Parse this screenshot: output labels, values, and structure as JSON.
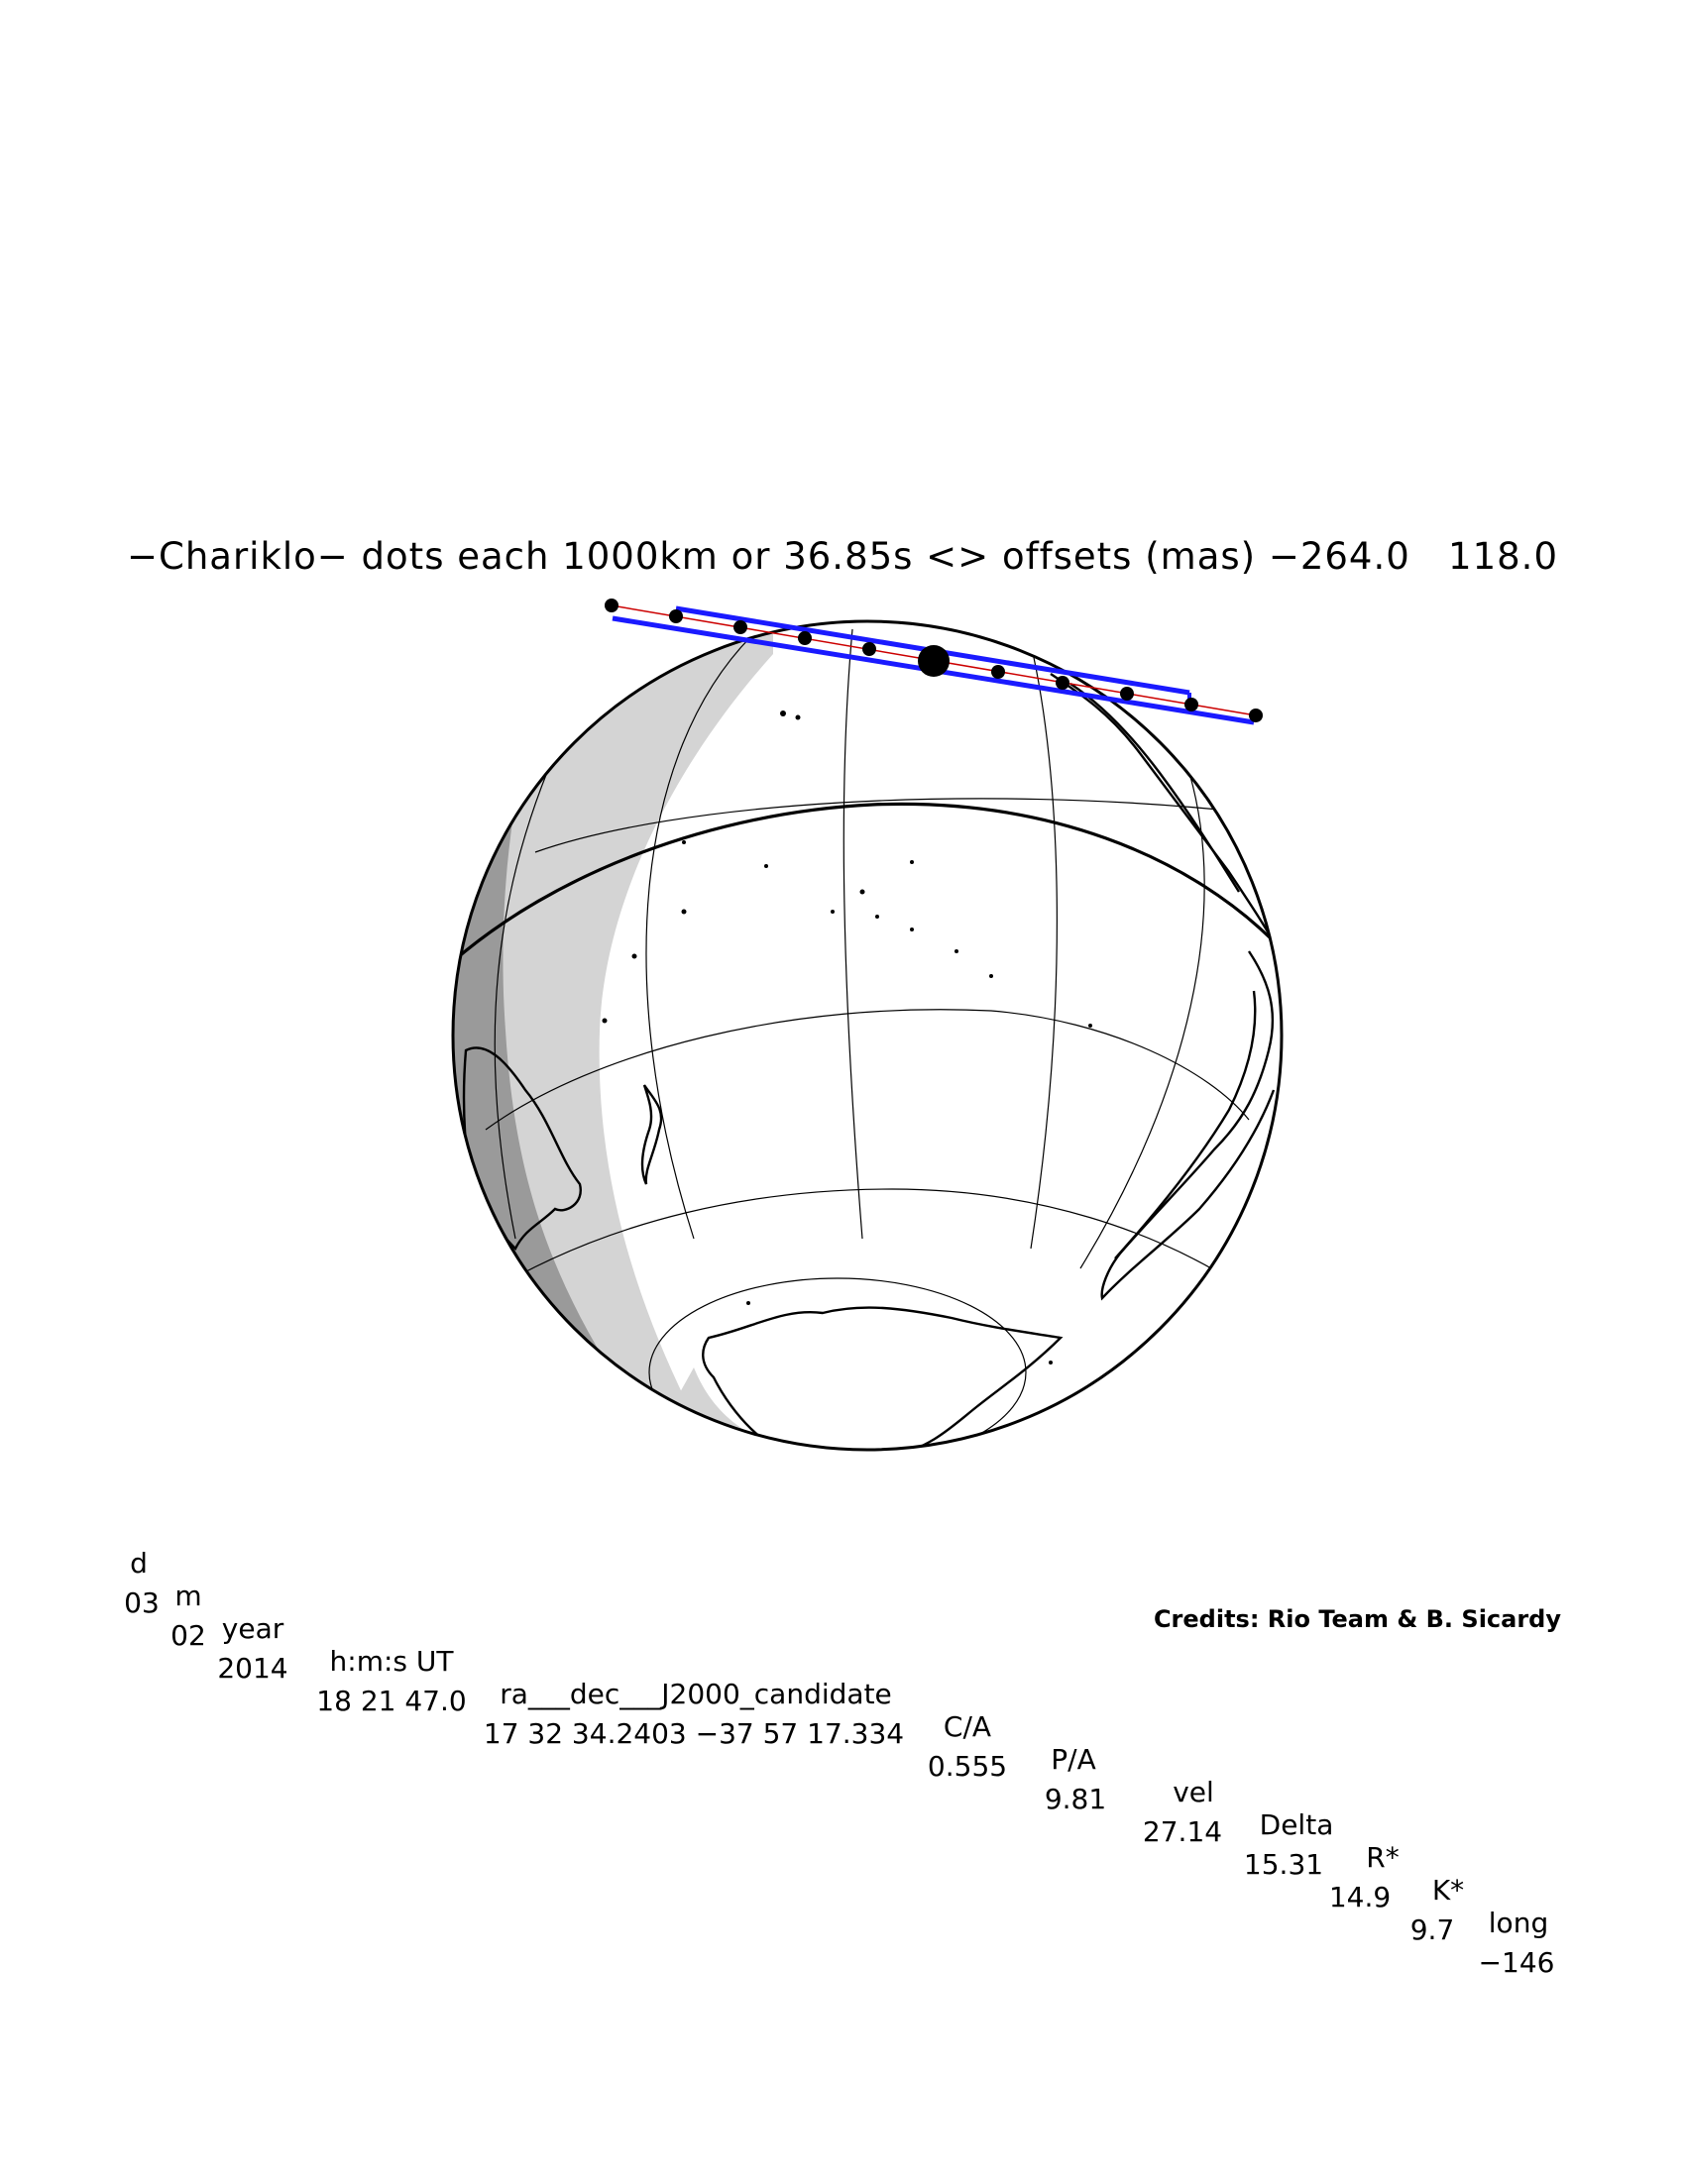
{
  "title": "−Chariklo− dots each 1000km or 36.85s <> offsets (mas) −264.0   118.0",
  "table": {
    "headers": [
      "d",
      "m",
      "year",
      "h:m:s UT",
      "ra___dec___J2000_candidate",
      "C/A",
      "P/A",
      "vel",
      "Delta",
      "R*",
      "K*",
      "long"
    ],
    "values": [
      "03",
      "02",
      "2014",
      "18 21 47.0",
      "17 32 34.2403 −37 57 17.334",
      "0.555",
      "9.81",
      "27.14",
      "15.31",
      "14.9",
      "9.7",
      "−146"
    ]
  },
  "credits": "Credits: Rio Team & B. Sicardy",
  "colors": {
    "track": "#1a1aff",
    "centerline": "#cc0000",
    "night": "#d4d4d4",
    "twilight": "#999999",
    "outline": "#000000"
  }
}
